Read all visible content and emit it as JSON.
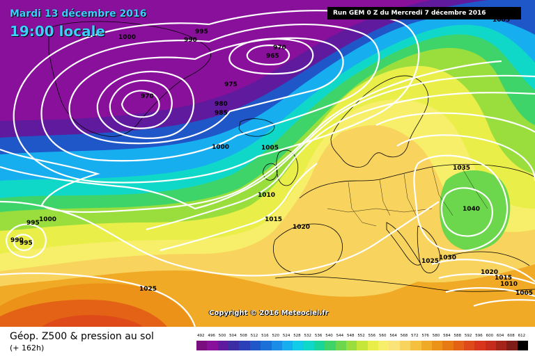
{
  "header": {
    "date": "Mardi 13 décembre 2016",
    "time": "19:00 locale",
    "run": "Run GEM 0 Z du Mercredi 7 décembre 2016"
  },
  "copyright": "Copyright © 2016 Meteociel.fr",
  "footer": {
    "title": "Géop. Z500 & pression au sol",
    "subtitle": "(+ 162h)"
  },
  "isobar_labels": [
    "1000",
    "995",
    "990",
    "970",
    "965",
    "975",
    "980",
    "985",
    "970",
    "1000",
    "1005",
    "1010",
    "1015",
    "1020",
    "1000",
    "995",
    "990",
    "995",
    "1025",
    "1035",
    "1040",
    "1025",
    "1030",
    "1020",
    "1015",
    "1010",
    "1005",
    "1005"
  ],
  "scale": {
    "ticks": [
      "492",
      "496",
      "500",
      "504",
      "508",
      "512",
      "516",
      "520",
      "524",
      "528",
      "532",
      "536",
      "540",
      "544",
      "548",
      "552",
      "556",
      "560",
      "564",
      "568",
      "572",
      "576",
      "580",
      "584",
      "588",
      "592",
      "596",
      "600",
      "604",
      "608",
      "612"
    ],
    "colors": [
      "#7a0e7e",
      "#88109a",
      "#5f1a9d",
      "#3b2ea5",
      "#2a3fb8",
      "#1f56c8",
      "#1b70d8",
      "#1a8ee6",
      "#17aef0",
      "#12cbe8",
      "#10d8c8",
      "#18d69a",
      "#3fd46a",
      "#6cd64c",
      "#9ade3e",
      "#c6e63a",
      "#e9ee48",
      "#f7ef6a",
      "#fae47a",
      "#f8d35e",
      "#f4c03e",
      "#f0aa26",
      "#ec9218",
      "#e87a14",
      "#e46216",
      "#de4a1a",
      "#d8361c",
      "#c62c1c",
      "#a4241a",
      "#7e1c18",
      "#000000"
    ]
  },
  "colors": {
    "accent_title": "#3dd0ff",
    "isobar": "#ffffff",
    "coast": "#000000"
  }
}
